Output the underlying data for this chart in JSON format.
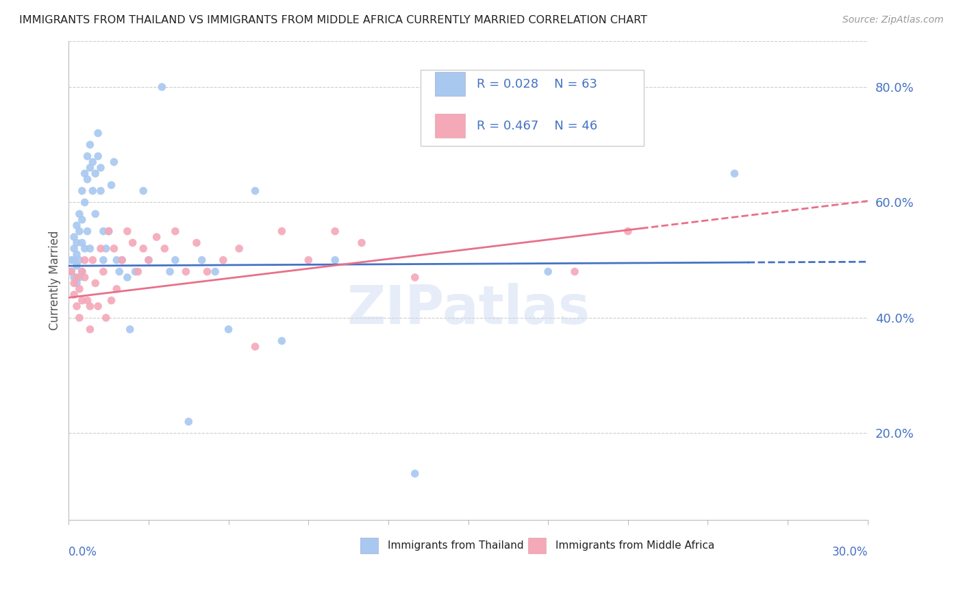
{
  "title": "IMMIGRANTS FROM THAILAND VS IMMIGRANTS FROM MIDDLE AFRICA CURRENTLY MARRIED CORRELATION CHART",
  "source": "Source: ZipAtlas.com",
  "ylabel": "Currently Married",
  "y_ticks": [
    0.2,
    0.4,
    0.6,
    0.8
  ],
  "y_tick_labels": [
    "20.0%",
    "40.0%",
    "60.0%",
    "80.0%"
  ],
  "x_range": [
    0.0,
    0.3
  ],
  "y_range": [
    0.05,
    0.88
  ],
  "color_thailand": "#A8C8F0",
  "color_middle_africa": "#F4A8B8",
  "color_text_blue": "#4472C4",
  "color_trendline_blue": "#4472C4",
  "color_trendline_pink": "#E8708A",
  "label_thailand": "Immigrants from Thailand",
  "label_middle_africa": "Immigrants from Middle Africa",
  "watermark": "ZIPatlas",
  "thailand_x": [
    0.001,
    0.001,
    0.002,
    0.002,
    0.002,
    0.002,
    0.003,
    0.003,
    0.003,
    0.003,
    0.003,
    0.004,
    0.004,
    0.004,
    0.004,
    0.005,
    0.005,
    0.005,
    0.005,
    0.006,
    0.006,
    0.006,
    0.007,
    0.007,
    0.007,
    0.008,
    0.008,
    0.008,
    0.009,
    0.009,
    0.01,
    0.01,
    0.011,
    0.011,
    0.012,
    0.012,
    0.013,
    0.013,
    0.014,
    0.015,
    0.016,
    0.017,
    0.018,
    0.019,
    0.02,
    0.022,
    0.023,
    0.025,
    0.028,
    0.03,
    0.035,
    0.038,
    0.04,
    0.045,
    0.05,
    0.055,
    0.06,
    0.07,
    0.08,
    0.1,
    0.13,
    0.18,
    0.25
  ],
  "thailand_y": [
    0.5,
    0.48,
    0.52,
    0.47,
    0.54,
    0.5,
    0.56,
    0.53,
    0.49,
    0.51,
    0.46,
    0.55,
    0.58,
    0.5,
    0.47,
    0.62,
    0.57,
    0.53,
    0.48,
    0.65,
    0.6,
    0.52,
    0.68,
    0.64,
    0.55,
    0.7,
    0.66,
    0.52,
    0.67,
    0.62,
    0.65,
    0.58,
    0.68,
    0.72,
    0.66,
    0.62,
    0.55,
    0.5,
    0.52,
    0.55,
    0.63,
    0.67,
    0.5,
    0.48,
    0.5,
    0.47,
    0.38,
    0.48,
    0.62,
    0.5,
    0.8,
    0.48,
    0.5,
    0.22,
    0.5,
    0.48,
    0.38,
    0.62,
    0.36,
    0.5,
    0.13,
    0.48,
    0.65
  ],
  "middle_africa_x": [
    0.001,
    0.002,
    0.002,
    0.003,
    0.003,
    0.004,
    0.004,
    0.005,
    0.005,
    0.006,
    0.006,
    0.007,
    0.008,
    0.008,
    0.009,
    0.01,
    0.011,
    0.012,
    0.013,
    0.014,
    0.015,
    0.016,
    0.017,
    0.018,
    0.02,
    0.022,
    0.024,
    0.026,
    0.028,
    0.03,
    0.033,
    0.036,
    0.04,
    0.044,
    0.048,
    0.052,
    0.058,
    0.064,
    0.07,
    0.08,
    0.09,
    0.1,
    0.11,
    0.13,
    0.19,
    0.21
  ],
  "middle_africa_y": [
    0.48,
    0.46,
    0.44,
    0.47,
    0.42,
    0.45,
    0.4,
    0.48,
    0.43,
    0.5,
    0.47,
    0.43,
    0.42,
    0.38,
    0.5,
    0.46,
    0.42,
    0.52,
    0.48,
    0.4,
    0.55,
    0.43,
    0.52,
    0.45,
    0.5,
    0.55,
    0.53,
    0.48,
    0.52,
    0.5,
    0.54,
    0.52,
    0.55,
    0.48,
    0.53,
    0.48,
    0.5,
    0.52,
    0.35,
    0.55,
    0.5,
    0.55,
    0.53,
    0.47,
    0.48,
    0.55
  ],
  "trendline_thai_x0": 0.0,
  "trendline_thai_x1": 0.255,
  "trendline_thai_dash_x0": 0.255,
  "trendline_thai_dash_x1": 0.3,
  "trendline_mid_x0": 0.0,
  "trendline_mid_x1": 0.215,
  "trendline_mid_dash_x0": 0.215,
  "trendline_mid_dash_x1": 0.3,
  "trendline_thai_y_at_0": 0.49,
  "trendline_thai_y_at_255": 0.496,
  "trendline_mid_y_at_0": 0.435,
  "trendline_mid_y_at_215": 0.555
}
